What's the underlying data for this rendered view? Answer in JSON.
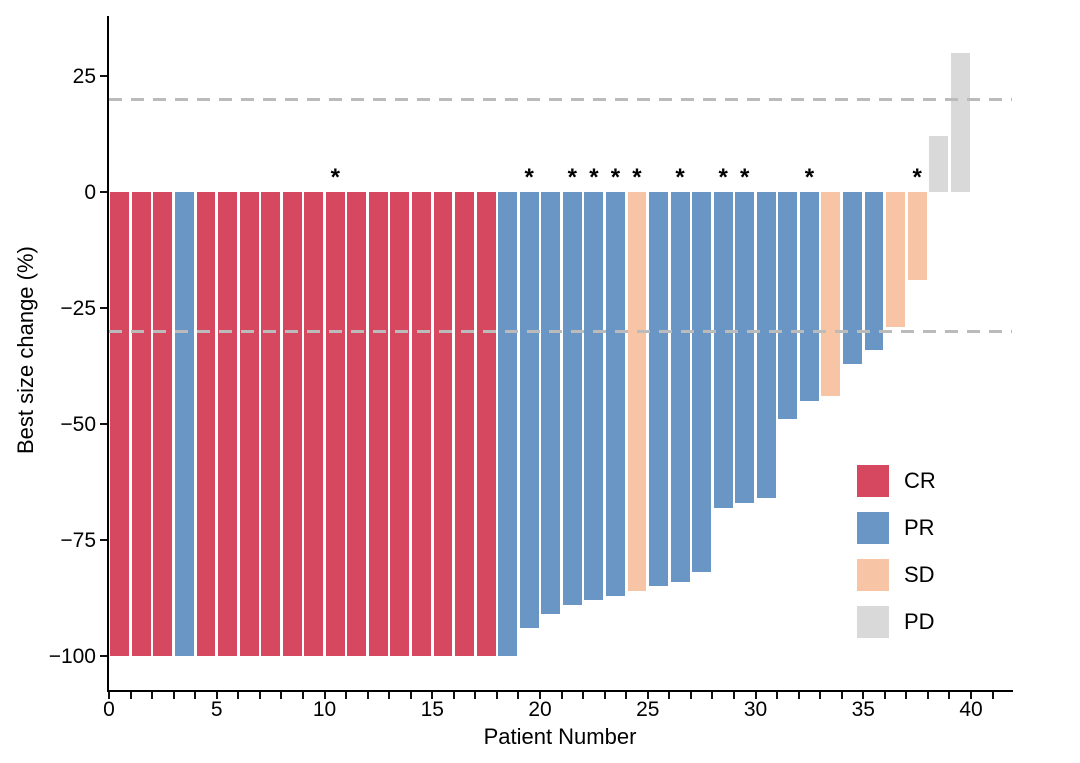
{
  "chart_data": {
    "type": "bar",
    "title": "",
    "xlabel": "Patient Number",
    "ylabel": "Best size change (%)",
    "grid": false,
    "legend_position": "right-inside",
    "annotation_symbol": "*",
    "x_tick_values": [
      0,
      5,
      10,
      15,
      20,
      25,
      30,
      35,
      40
    ],
    "x_tick_labels": [
      "0",
      "5",
      "10",
      "15",
      "20",
      "25",
      "30",
      "35",
      "40"
    ],
    "minor_tick_step": 1,
    "minor_tick_max": 41,
    "y_tick_values": [
      25,
      0,
      -25,
      -50,
      -75,
      -100
    ],
    "y_tick_labels": [
      "25",
      "0",
      "−25",
      "−50",
      "−75",
      "−100"
    ],
    "xlim": [
      0,
      42
    ],
    "ylim": [
      -107,
      38
    ],
    "reference_lines": {
      "values": [
        20,
        -30
      ],
      "style": "dashed",
      "color": "#BBBBBB"
    },
    "patients": [
      1,
      2,
      3,
      4,
      5,
      6,
      7,
      8,
      9,
      10,
      11,
      12,
      13,
      14,
      15,
      16,
      17,
      18,
      19,
      20,
      21,
      22,
      23,
      24,
      25,
      26,
      27,
      28,
      29,
      30,
      31,
      32,
      33,
      34,
      35,
      36,
      37,
      38,
      39,
      40
    ],
    "values": [
      -100,
      -100,
      -100,
      -100,
      -100,
      -100,
      -100,
      -100,
      -100,
      -100,
      -100,
      -100,
      -100,
      -100,
      -100,
      -100,
      -100,
      -100,
      -100,
      -94,
      -91,
      -89,
      -88,
      -87,
      -86,
      -85,
      -84,
      -82,
      -68,
      -67,
      -66,
      -49,
      -45,
      -44,
      -37,
      -34,
      -29,
      -19,
      12,
      30
    ],
    "responses": [
      "CR",
      "CR",
      "CR",
      "PR",
      "CR",
      "CR",
      "CR",
      "CR",
      "CR",
      "CR",
      "CR",
      "CR",
      "CR",
      "CR",
      "CR",
      "CR",
      "CR",
      "CR",
      "PR",
      "PR",
      "PR",
      "PR",
      "PR",
      "PR",
      "SD",
      "PR",
      "PR",
      "PR",
      "PR",
      "PR",
      "PR",
      "PR",
      "PR",
      "SD",
      "PR",
      "PR",
      "SD",
      "SD",
      "PD",
      "PD"
    ],
    "starred_patients": [
      11,
      20,
      22,
      23,
      24,
      25,
      27,
      29,
      30,
      33,
      38
    ],
    "colors": {
      "CR": "#D6485F",
      "PR": "#6A96C6",
      "SD": "#F7C5A6",
      "PD": "#D9D9D9"
    },
    "legend": [
      {
        "label": "CR"
      },
      {
        "label": "PR"
      },
      {
        "label": "SD"
      },
      {
        "label": "PD"
      }
    ]
  }
}
